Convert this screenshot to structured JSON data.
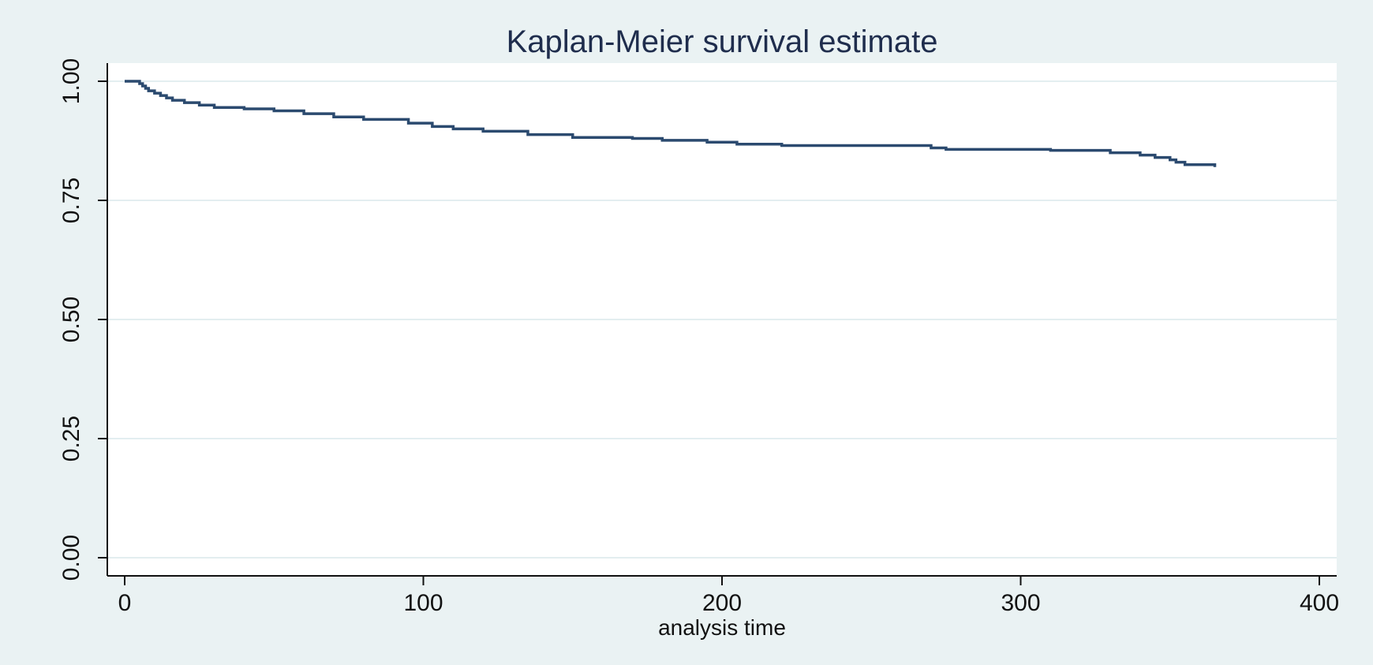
{
  "chart_data": {
    "type": "line",
    "title": "Kaplan-Meier survival estimate",
    "xlabel": "analysis time",
    "ylabel": "",
    "xlim": [
      0,
      400
    ],
    "ylim": [
      0,
      1
    ],
    "x_ticks": [
      0,
      100,
      200,
      300,
      400
    ],
    "y_ticks": [
      0,
      0.25,
      0.5,
      0.75,
      1
    ],
    "x_tick_labels": [
      "0",
      "100",
      "200",
      "300",
      "400"
    ],
    "y_tick_labels": [
      "0.00",
      "0.25",
      "0.50",
      "0.75",
      "1.00"
    ],
    "grid": "horizontal",
    "legend": "none",
    "colors": {
      "background": "#eaf2f3",
      "plot_area": "#ffffff",
      "line": "#2b4a6f",
      "gridline": "#e3eef0",
      "title": "#1f2d4d"
    },
    "series": [
      {
        "step": true,
        "x": [
          0,
          5,
          6,
          7,
          8,
          10,
          12,
          14,
          16,
          20,
          25,
          30,
          40,
          50,
          60,
          70,
          80,
          95,
          103,
          110,
          120,
          135,
          150,
          170,
          180,
          195,
          205,
          220,
          250,
          270,
          275,
          290,
          310,
          330,
          340,
          345,
          350,
          352,
          355,
          365
        ],
        "y": [
          1.0,
          0.995,
          0.99,
          0.985,
          0.98,
          0.975,
          0.97,
          0.965,
          0.96,
          0.955,
          0.95,
          0.945,
          0.942,
          0.938,
          0.932,
          0.925,
          0.92,
          0.912,
          0.905,
          0.9,
          0.895,
          0.888,
          0.882,
          0.88,
          0.876,
          0.872,
          0.868,
          0.865,
          0.865,
          0.86,
          0.857,
          0.857,
          0.855,
          0.85,
          0.845,
          0.84,
          0.835,
          0.83,
          0.825,
          0.82
        ]
      }
    ]
  }
}
